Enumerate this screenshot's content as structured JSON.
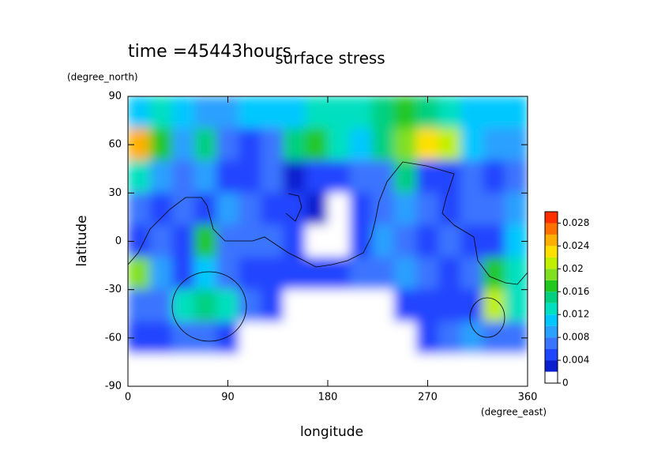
{
  "chart_data": {
    "type": "contour",
    "title": "surface stress",
    "annotation": "time =45443hours",
    "x_label": "longitude",
    "y_label": "latitude",
    "x_unit": "(degree_east)",
    "y_unit": "(degree_north)",
    "xlim": [
      0,
      360
    ],
    "ylim": [
      -90,
      90
    ],
    "xticks": [
      0,
      90,
      180,
      270,
      360
    ],
    "yticks": [
      -90,
      -60,
      -30,
      0,
      30,
      60,
      90
    ],
    "x": [
      10,
      30,
      50,
      70,
      90,
      110,
      130,
      150,
      170,
      190,
      210,
      230,
      250,
      270,
      290,
      310,
      330,
      350
    ],
    "y": [
      80,
      60,
      40,
      20,
      0,
      -20,
      -40,
      -60,
      -80
    ],
    "z": [
      [
        0.01,
        0.012,
        0.01,
        0.008,
        0.008,
        0.01,
        0.01,
        0.01,
        0.012,
        0.012,
        0.012,
        0.014,
        0.016,
        0.014,
        0.012,
        0.01,
        0.01,
        0.01
      ],
      [
        0.024,
        0.016,
        0.008,
        0.014,
        0.006,
        0.004,
        0.006,
        0.014,
        0.016,
        0.012,
        0.01,
        0.014,
        0.018,
        0.022,
        0.02,
        0.01,
        0.008,
        0.008
      ],
      [
        0.012,
        0.008,
        0.006,
        0.008,
        0.004,
        0.004,
        0.006,
        0.002,
        0.004,
        0.004,
        0.006,
        0.006,
        0.014,
        0.004,
        0.004,
        0.006,
        0.004,
        0.006
      ],
      [
        0.006,
        0.004,
        0.006,
        0.004,
        0.008,
        0.006,
        0.004,
        0.004,
        0.002,
        0.001,
        0.004,
        0.006,
        0.008,
        0.006,
        0.004,
        0.006,
        0.006,
        0.008
      ],
      [
        0.004,
        0.006,
        0.004,
        0.016,
        0.006,
        0.006,
        0.006,
        0.004,
        0.001,
        0.001,
        0.004,
        0.008,
        0.006,
        0.004,
        0.006,
        0.004,
        0.004,
        0.01
      ],
      [
        0.018,
        0.008,
        0.004,
        0.01,
        0.006,
        0.004,
        0.004,
        0.004,
        0.004,
        0.004,
        0.006,
        0.006,
        0.008,
        0.006,
        0.004,
        0.006,
        0.016,
        0.012
      ],
      [
        0.006,
        0.006,
        0.012,
        0.014,
        0.012,
        0.006,
        0.004,
        0.001,
        0.001,
        0.001,
        0.001,
        0.001,
        0.004,
        0.004,
        0.004,
        0.004,
        0.02,
        0.012
      ],
      [
        0.004,
        0.004,
        0.006,
        0.006,
        0.004,
        0.001,
        0.001,
        0.001,
        0.001,
        0.001,
        0.001,
        0.001,
        0.001,
        0.004,
        0.006,
        0.008,
        0.006,
        0.006
      ],
      [
        0.001,
        0.001,
        0.001,
        0.001,
        0.001,
        0.001,
        0.001,
        0.001,
        0.001,
        0.001,
        0.001,
        0.001,
        0.001,
        0.001,
        0.001,
        0.001,
        0.001,
        0.001
      ]
    ],
    "colorbar": {
      "levels": [
        0,
        0.002,
        0.004,
        0.006,
        0.008,
        0.01,
        0.012,
        0.014,
        0.016,
        0.018,
        0.02,
        0.022,
        0.024,
        0.026,
        0.028,
        0.03
      ],
      "colors": [
        "#ffffff",
        "#0a1fcf",
        "#2045ff",
        "#3a75ff",
        "#2aa0ff",
        "#00c8ff",
        "#00e0c0",
        "#00d080",
        "#20c820",
        "#80e020",
        "#c0f000",
        "#ffe000",
        "#ffb000",
        "#ff7000",
        "#ff3000"
      ],
      "ticks": [
        0,
        0.004,
        0.008,
        0.012,
        0.016,
        0.02,
        0.024,
        0.028
      ]
    }
  }
}
